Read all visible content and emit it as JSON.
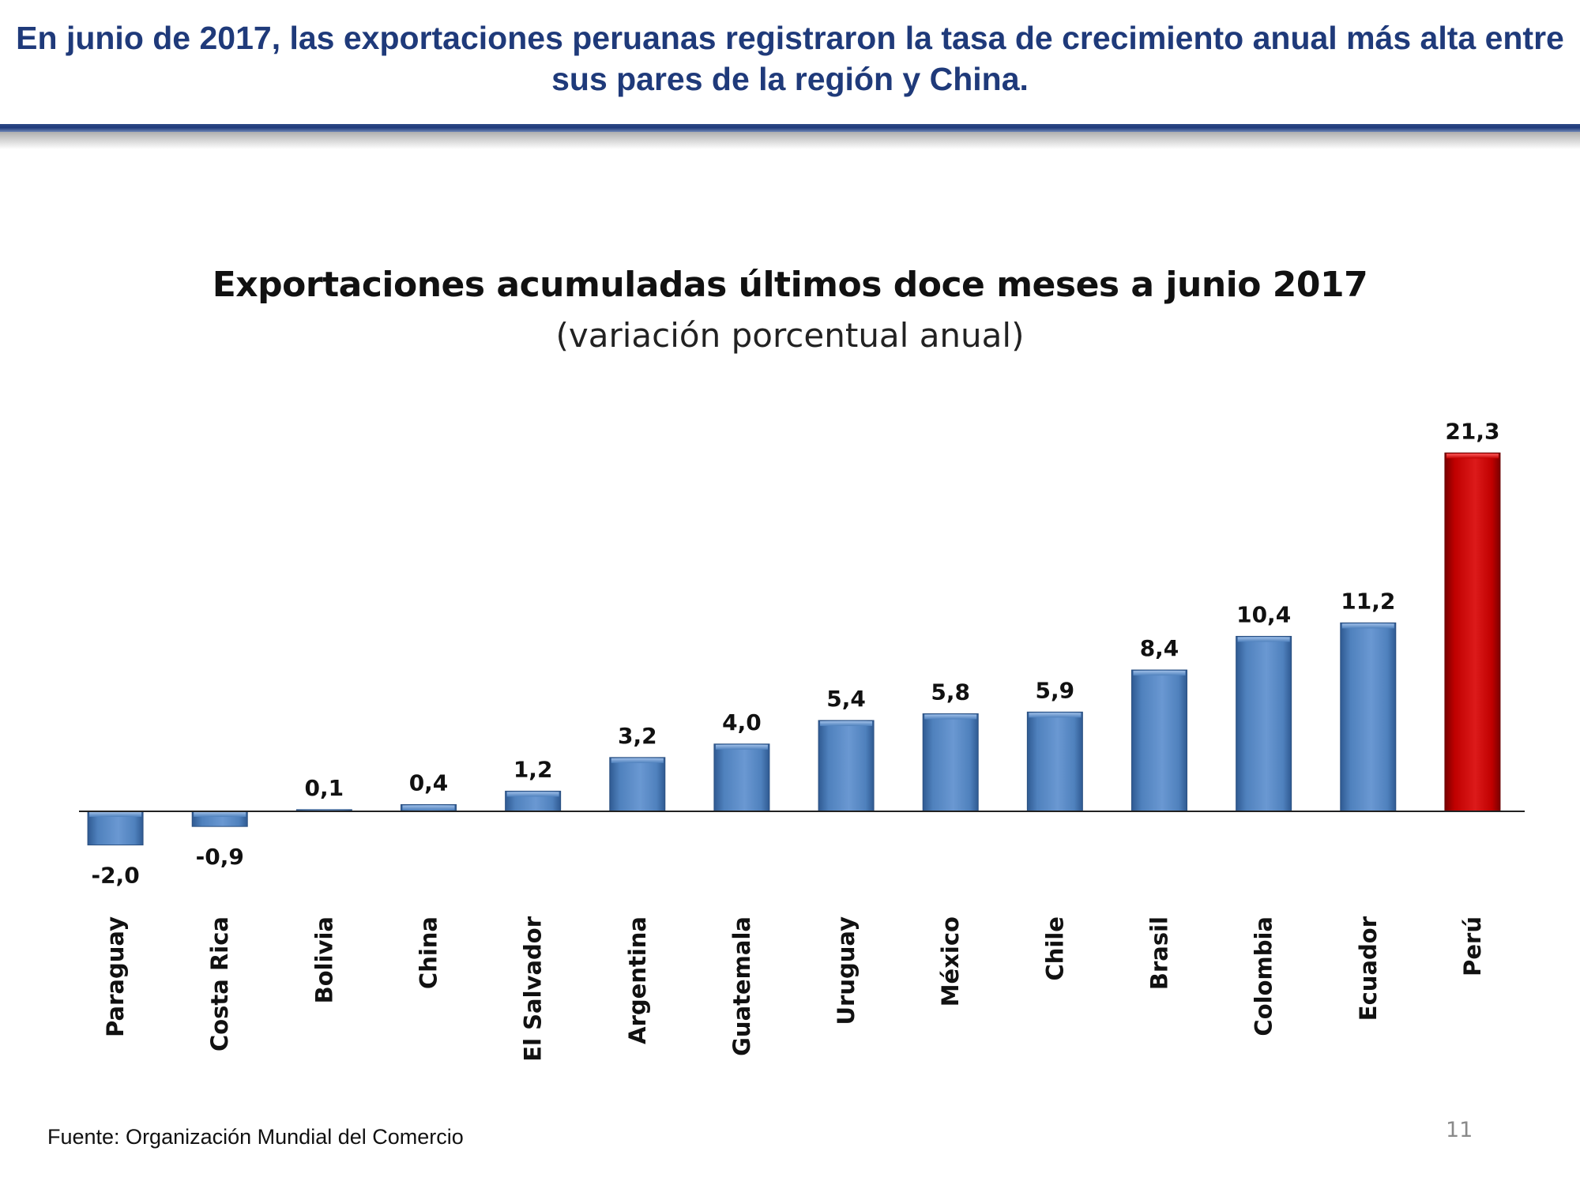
{
  "slide": {
    "headline": "En junio de 2017, las exportaciones peruanas registraron la tasa de crecimiento anual más alta entre sus pares de la región y China.",
    "source": "Fuente: Organización Mundial del Comercio",
    "page_number": "11"
  },
  "colors": {
    "headline": "#1f3a7a",
    "bar_default": "#4f81bd",
    "bar_highlight": "#c00000"
  },
  "chart_data": {
    "type": "bar",
    "title": "Exportaciones acumuladas últimos doce meses a junio 2017",
    "subtitle": "(variación porcentual anual)",
    "xlabel": "",
    "ylabel": "",
    "categories": [
      "Paraguay",
      "Costa Rica",
      "Bolivia",
      "China",
      "El Salvador",
      "Argentina",
      "Guatemala",
      "Uruguay",
      "México",
      "Chile",
      "Brasil",
      "Colombia",
      "Ecuador",
      "Perú"
    ],
    "values": [
      -2.0,
      -0.9,
      0.1,
      0.4,
      1.2,
      3.2,
      4.0,
      5.4,
      5.8,
      5.9,
      8.4,
      10.4,
      11.2,
      21.3
    ],
    "value_labels": [
      "-2,0",
      "-0,9",
      "0,1",
      "0,4",
      "1,2",
      "3,2",
      "4,0",
      "5,4",
      "5,8",
      "5,9",
      "8,4",
      "10,4",
      "11,2",
      "21,3"
    ],
    "highlight": "Perú",
    "grid": false,
    "legend": "none"
  }
}
